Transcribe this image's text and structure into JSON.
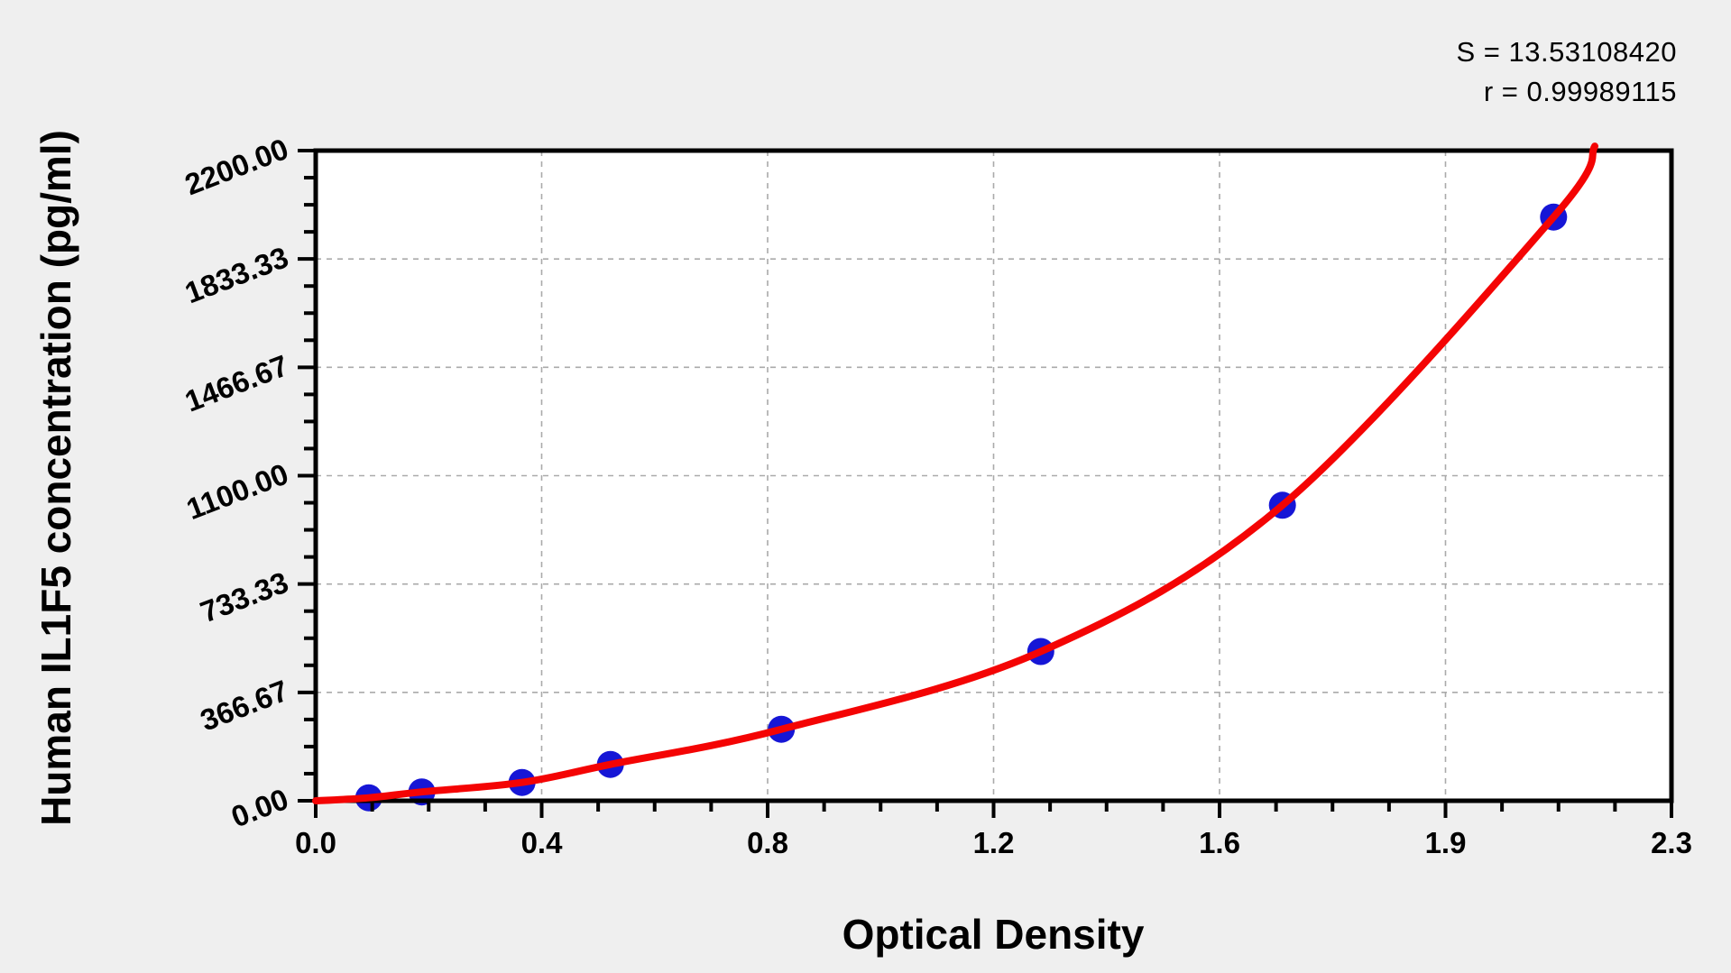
{
  "figure": {
    "x_title": "Optical Density",
    "y_title": "Human IL1F5 concentration (pg/ml)",
    "stats": {
      "s_line": "S = 13.53108420",
      "r_line": "r = 0.99989115"
    }
  },
  "chart_data": {
    "type": "scatter",
    "title": "",
    "xlabel": "Optical Density",
    "ylabel": "Human IL1F5 concentration (pg/ml)",
    "xlim": [
      0,
      2.3
    ],
    "ylim": [
      0,
      2200
    ],
    "x_tick_labels": [
      "0.0",
      "0.4",
      "0.8",
      "1.2",
      "1.6",
      "1.9",
      "2.3"
    ],
    "y_tick_labels": [
      "0.00",
      "366.67",
      "733.33",
      "1100.00",
      "1466.67",
      "1833.33",
      "2200.00"
    ],
    "x_minor_per_major": 4,
    "y_minor_per_major": 4,
    "grid": "dashed",
    "legend": "none",
    "stats": {
      "S": "13.53108420",
      "r": "0.99989115"
    },
    "series": [
      {
        "name": "standard-points",
        "type": "scatter",
        "x": [
          0.09,
          0.18,
          0.35,
          0.5,
          0.79,
          1.23,
          1.64,
          2.1
        ],
        "y": [
          10,
          30,
          62,
          123,
          242,
          505,
          1000,
          1975
        ]
      },
      {
        "name": "fitted-curve",
        "type": "line",
        "x": [
          0.0,
          0.09,
          0.18,
          0.35,
          0.5,
          0.79,
          1.23,
          1.64,
          2.1,
          2.17
        ],
        "y": [
          0,
          10,
          30,
          62,
          123,
          242,
          505,
          1000,
          1975,
          2215
        ]
      }
    ],
    "colors": {
      "figure_bg": "#efefef",
      "plot_bg": "#ffffff",
      "axis": "#000000",
      "grid": "#aaaaaa",
      "points": "#1616d6",
      "curve": "#f40404"
    }
  }
}
